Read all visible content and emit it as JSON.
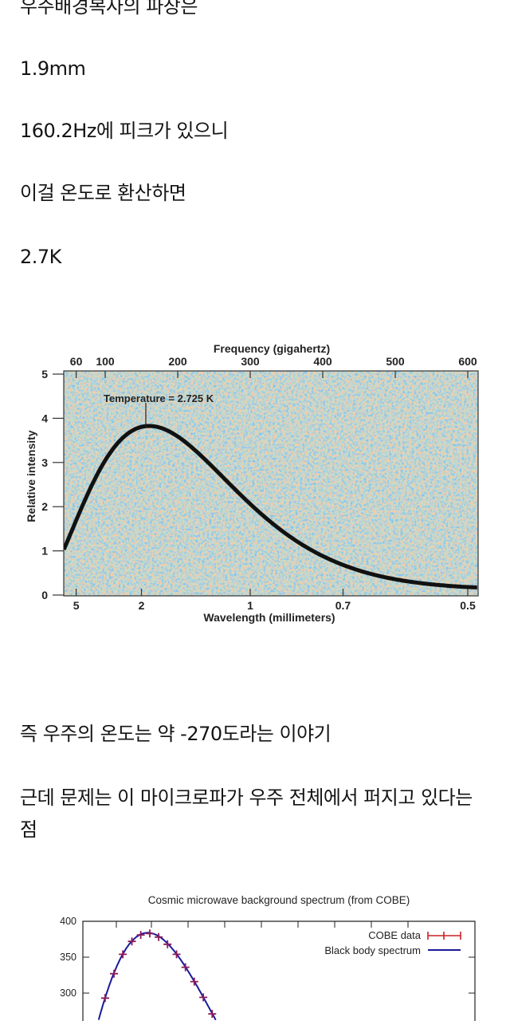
{
  "text": {
    "line1": "우주배경복사의 파장은",
    "line2": "1.9mm",
    "line3": "160.2Hz에 피크가 있으니",
    "line4": "이걸 온도로 환산하면",
    "line5": "2.7K",
    "line6": "즉 우주의 온도는 약 -270도라는 이야기",
    "line7": "근데 문제는 이 마이크로파가 우주 전체에서 퍼지고 있다는 점"
  },
  "chart_data": [
    {
      "type": "line",
      "top_xlabel": "Frequency (gigahertz)",
      "xlabel": "Wavelength (millimeters)",
      "ylabel": "Relative intensity",
      "annotation": "Temperature = 2.725  K",
      "top_ticks": [
        "60",
        "100",
        "200",
        "300",
        "400",
        "500",
        "600"
      ],
      "top_tick_values": [
        60,
        100,
        200,
        300,
        400,
        500,
        600
      ],
      "bottom_ticks": [
        "5",
        "2",
        "1",
        "0.7",
        "0.5"
      ],
      "bottom_tick_values_ghz": [
        60,
        150,
        300,
        428,
        600
      ],
      "y_ticks": [
        "0",
        "1",
        "2",
        "3",
        "4",
        "5"
      ],
      "ylim": [
        0,
        5
      ],
      "xlim_ghz": [
        43,
        615
      ],
      "temperature_k": 2.725,
      "peak": {
        "frequency_ghz": 160,
        "intensity": 3.8
      },
      "line_color": "#111111",
      "background": "CMB temperature map (blue/orange mottled)"
    },
    {
      "type": "scatter",
      "title": "Cosmic microwave background spectrum (from COBE)",
      "y_ticks": [
        "400",
        "350",
        "300"
      ],
      "ylim_visible": [
        261,
        400
      ],
      "legend": "top-right",
      "series": [
        {
          "name": "COBE data",
          "color": "#cc2222",
          "x": [
            3.18,
            3.63,
            4.08,
            4.54,
            4.99,
            5.45,
            5.9,
            6.35,
            6.81,
            7.26,
            7.71,
            8.17,
            8.62
          ],
          "y": [
            293,
            327,
            354,
            372,
            381,
            383,
            378,
            368,
            354,
            336,
            316,
            294,
            271
          ]
        },
        {
          "name": "Black body spectrum",
          "color": "#1a1a9a",
          "temperature_k": 2.725
        }
      ]
    }
  ]
}
